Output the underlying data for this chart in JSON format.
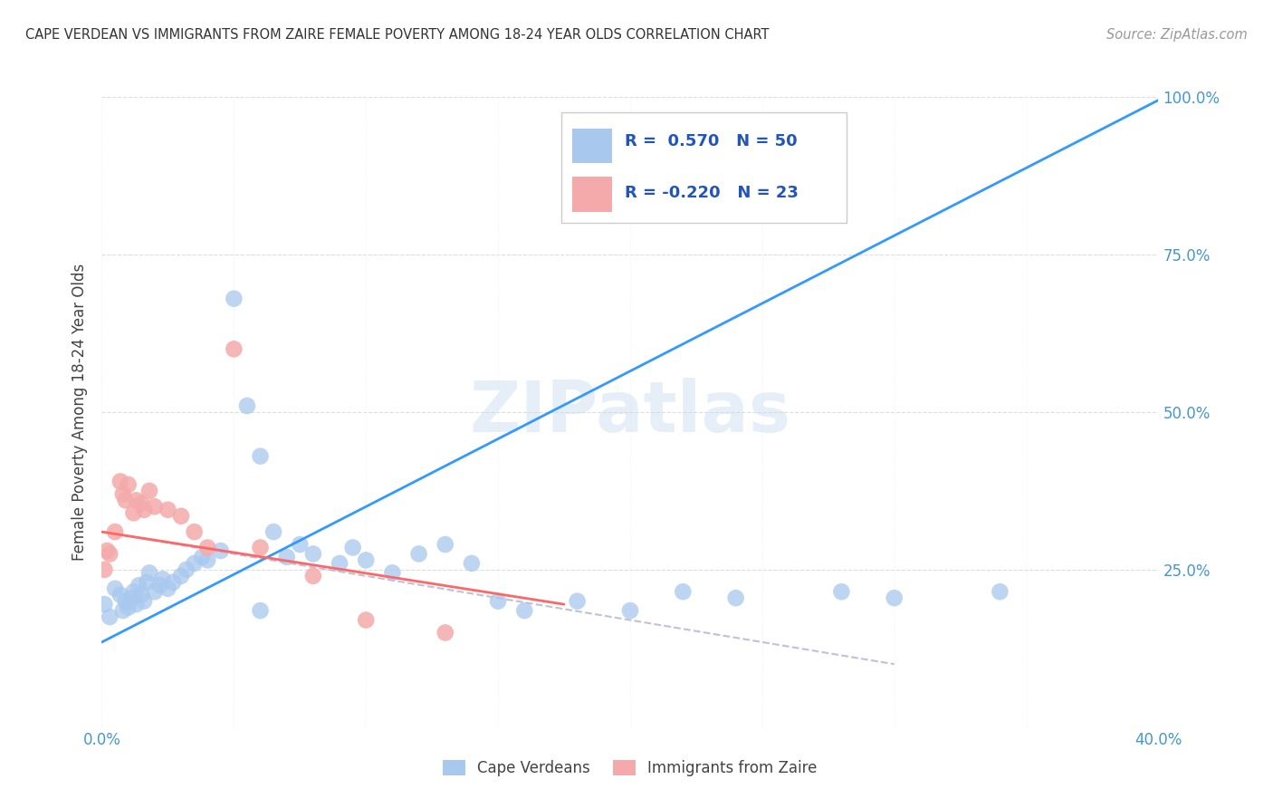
{
  "title": "CAPE VERDEAN VS IMMIGRANTS FROM ZAIRE FEMALE POVERTY AMONG 18-24 YEAR OLDS CORRELATION CHART",
  "source": "Source: ZipAtlas.com",
  "ylabel": "Female Poverty Among 18-24 Year Olds",
  "xlim": [
    0.0,
    0.4
  ],
  "ylim": [
    0.0,
    1.0
  ],
  "watermark": "ZIPatlas",
  "legend_R1": "0.570",
  "legend_N1": "50",
  "legend_R2": "-0.220",
  "legend_N2": "23",
  "blue_color": "#A8C8ED",
  "pink_color": "#F4AAAA",
  "blue_line_color": "#3399FF",
  "pink_line_color": "#FF6666",
  "dashed_line_color": "#C0C0D8",
  "cape_verdean_x": [
    0.001,
    0.003,
    0.005,
    0.007,
    0.008,
    0.009,
    0.01,
    0.011,
    0.012,
    0.013,
    0.014,
    0.015,
    0.016,
    0.017,
    0.018,
    0.02,
    0.022,
    0.023,
    0.025,
    0.027,
    0.03,
    0.032,
    0.035,
    0.038,
    0.04,
    0.045,
    0.05,
    0.055,
    0.06,
    0.065,
    0.07,
    0.075,
    0.08,
    0.09,
    0.095,
    0.1,
    0.11,
    0.12,
    0.13,
    0.14,
    0.15,
    0.16,
    0.18,
    0.2,
    0.22,
    0.24,
    0.28,
    0.3,
    0.06,
    0.34
  ],
  "cape_verdean_y": [
    0.195,
    0.175,
    0.22,
    0.21,
    0.185,
    0.2,
    0.19,
    0.205,
    0.215,
    0.195,
    0.225,
    0.21,
    0.2,
    0.23,
    0.245,
    0.215,
    0.225,
    0.235,
    0.22,
    0.23,
    0.24,
    0.25,
    0.26,
    0.27,
    0.265,
    0.28,
    0.68,
    0.51,
    0.43,
    0.31,
    0.27,
    0.29,
    0.275,
    0.26,
    0.285,
    0.265,
    0.245,
    0.275,
    0.29,
    0.26,
    0.2,
    0.185,
    0.2,
    0.185,
    0.215,
    0.205,
    0.215,
    0.205,
    0.185,
    0.215
  ],
  "blue_line_x": [
    0.0,
    0.4
  ],
  "blue_line_y": [
    0.135,
    0.995
  ],
  "pink_line_x": [
    0.0,
    0.175
  ],
  "pink_line_y": [
    0.31,
    0.195
  ],
  "dashed_line_x": [
    0.0,
    0.3
  ],
  "dashed_line_y": [
    0.31,
    0.1
  ],
  "zaire_x": [
    0.001,
    0.002,
    0.003,
    0.005,
    0.007,
    0.008,
    0.009,
    0.01,
    0.012,
    0.013,
    0.015,
    0.016,
    0.018,
    0.02,
    0.025,
    0.03,
    0.035,
    0.04,
    0.05,
    0.06,
    0.08,
    0.1,
    0.13
  ],
  "zaire_y": [
    0.25,
    0.28,
    0.275,
    0.31,
    0.39,
    0.37,
    0.36,
    0.385,
    0.34,
    0.36,
    0.355,
    0.345,
    0.375,
    0.35,
    0.345,
    0.335,
    0.31,
    0.285,
    0.6,
    0.285,
    0.24,
    0.17,
    0.15
  ]
}
